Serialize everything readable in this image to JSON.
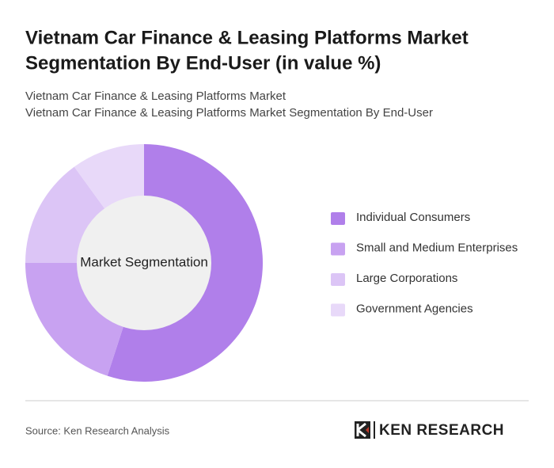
{
  "chart_data": {
    "type": "pie",
    "title": [
      "Vietnam Car Finance & Leasing Platforms Market",
      "Segmentation By End-User (in value %)"
    ],
    "subtitle": [
      "Vietnam Car Finance & Leasing Platforms Market",
      "Vietnam Car Finance & Leasing Platforms Market Segmentation By End-User"
    ],
    "center_label": "Market Segmentation",
    "categories": [
      "Individual Consumers",
      "Small and Medium Enterprises",
      "Large Corporations",
      "Government Agencies"
    ],
    "values": [
      55,
      20,
      15,
      10
    ],
    "colors": [
      "#b07fea",
      "#c8a2f1",
      "#dcc5f6",
      "#e8d9f9"
    ],
    "legend": "right"
  },
  "source": "Source: Ken Research Analysis",
  "brand": "KEN RESEARCH"
}
